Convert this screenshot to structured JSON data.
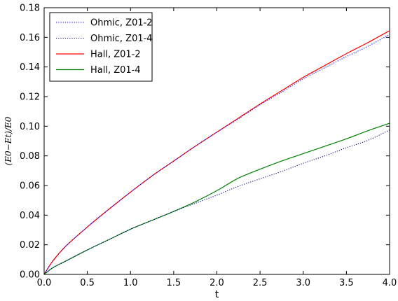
{
  "chart_data": {
    "type": "line",
    "title": "",
    "xlabel": "t",
    "ylabel": "(E0−Et)/E0",
    "xlim": [
      0.0,
      4.0
    ],
    "ylim": [
      0.0,
      0.18
    ],
    "x_ticks": [
      "0.0",
      "0.5",
      "1.0",
      "1.5",
      "2.0",
      "2.5",
      "3.0",
      "3.5",
      "4.0"
    ],
    "y_ticks": [
      "0.00",
      "0.02",
      "0.04",
      "0.06",
      "0.08",
      "0.10",
      "0.12",
      "0.14",
      "0.16",
      "0.18"
    ],
    "grid": false,
    "legend_position": "top-left",
    "series": [
      {
        "name": "Ohmic, Z01-2",
        "style": "dotted",
        "color": "#0000ff",
        "x": [
          0.0,
          0.1,
          0.25,
          0.5,
          0.75,
          1.0,
          1.25,
          1.5,
          1.75,
          2.0,
          2.25,
          2.5,
          2.75,
          3.0,
          3.25,
          3.5,
          3.75,
          4.0
        ],
        "y": [
          0.0,
          0.009,
          0.019,
          0.032,
          0.044,
          0.0555,
          0.0665,
          0.0765,
          0.0865,
          0.096,
          0.105,
          0.1145,
          0.123,
          0.132,
          0.1395,
          0.147,
          0.154,
          0.162
        ]
      },
      {
        "name": "Ohmic, Z01-4",
        "style": "dotted",
        "color": "#000080",
        "x": [
          0.0,
          0.1,
          0.25,
          0.5,
          0.75,
          1.0,
          1.25,
          1.5,
          1.75,
          2.0,
          2.25,
          2.5,
          2.75,
          3.0,
          3.25,
          3.5,
          3.75,
          4.0
        ],
        "y": [
          0.0,
          0.0045,
          0.009,
          0.0165,
          0.0235,
          0.0305,
          0.0365,
          0.0425,
          0.048,
          0.0535,
          0.0595,
          0.0645,
          0.0695,
          0.075,
          0.08,
          0.0855,
          0.0905,
          0.0975
        ]
      },
      {
        "name": "Hall, Z01-2",
        "style": "solid",
        "color": "#ff0000",
        "x": [
          0.0,
          0.1,
          0.25,
          0.5,
          0.75,
          1.0,
          1.25,
          1.5,
          1.75,
          2.0,
          2.25,
          2.5,
          2.75,
          3.0,
          3.25,
          3.5,
          3.75,
          4.0
        ],
        "y": [
          0.0,
          0.009,
          0.019,
          0.032,
          0.044,
          0.0555,
          0.0665,
          0.0765,
          0.0865,
          0.096,
          0.1055,
          0.115,
          0.124,
          0.133,
          0.141,
          0.149,
          0.1565,
          0.1645
        ]
      },
      {
        "name": "Hall, Z01-4",
        "style": "solid",
        "color": "#008000",
        "x": [
          0.0,
          0.1,
          0.25,
          0.5,
          0.75,
          1.0,
          1.25,
          1.5,
          1.75,
          2.0,
          2.25,
          2.5,
          2.75,
          3.0,
          3.25,
          3.5,
          3.75,
          4.0
        ],
        "y": [
          0.0,
          0.0045,
          0.009,
          0.0165,
          0.0235,
          0.0305,
          0.0365,
          0.0425,
          0.049,
          0.0565,
          0.065,
          0.071,
          0.0765,
          0.0815,
          0.0865,
          0.0915,
          0.097,
          0.102
        ]
      }
    ]
  }
}
